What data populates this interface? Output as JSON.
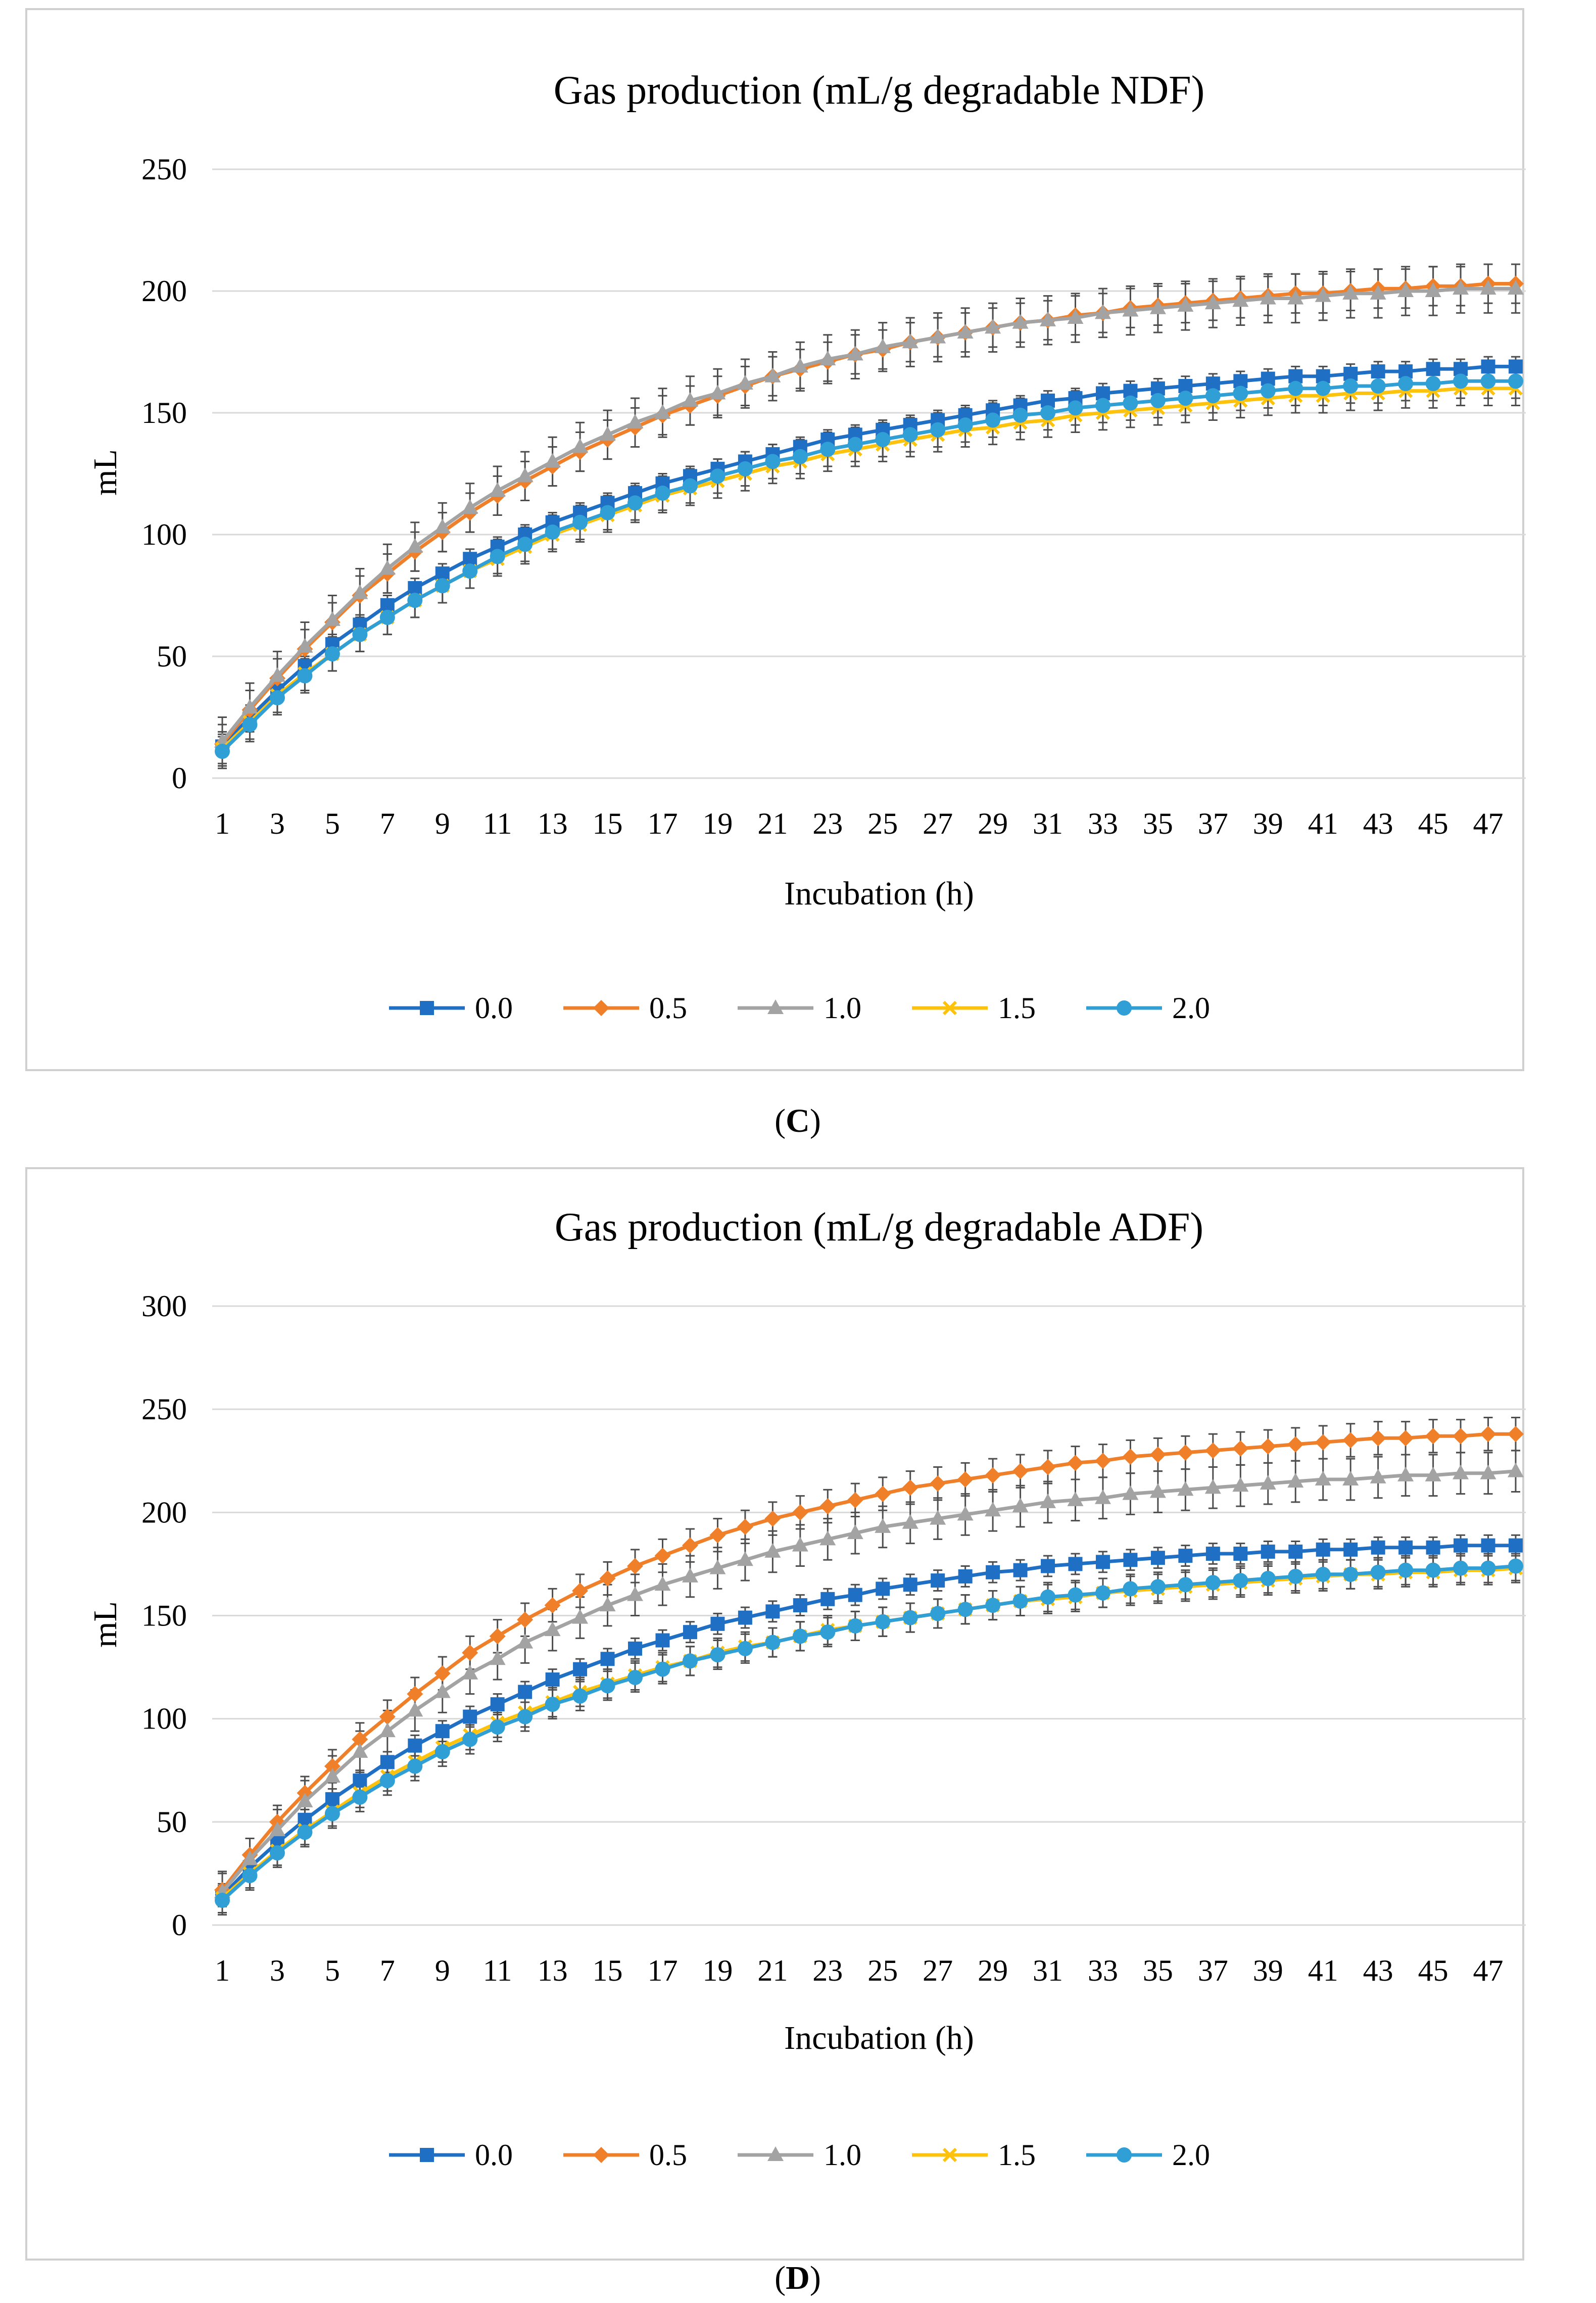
{
  "series_styles": [
    {
      "name": "0.0",
      "color": "#1f6fc4",
      "marker": "square"
    },
    {
      "name": "0.5",
      "color": "#f07f2a",
      "marker": "diamond"
    },
    {
      "name": "1.0",
      "color": "#a3a3a3",
      "marker": "triangle"
    },
    {
      "name": "1.5",
      "color": "#fdc20c",
      "marker": "x"
    },
    {
      "name": "2.0",
      "color": "#2f9fd6",
      "marker": "circle"
    }
  ],
  "error_bar_color": "#4d4d4d",
  "chart_data": [
    {
      "type": "line",
      "panel_label": "C",
      "title": "Gas production (mL/g degradable NDF)",
      "xlabel": "Incubation (h)",
      "ylabel": "mL",
      "ylim": [
        0,
        250
      ],
      "yticks": [
        0,
        50,
        100,
        150,
        200,
        250
      ],
      "x": [
        1,
        2,
        3,
        4,
        5,
        6,
        7,
        8,
        9,
        10,
        11,
        12,
        13,
        14,
        15,
        16,
        17,
        18,
        19,
        20,
        21,
        22,
        23,
        24,
        25,
        26,
        27,
        28,
        29,
        30,
        31,
        32,
        33,
        34,
        35,
        36,
        37,
        38,
        39,
        40,
        41,
        42,
        43,
        44,
        45,
        46,
        47,
        48
      ],
      "xtick_labels": [
        "1",
        "3",
        "5",
        "7",
        "9",
        "11",
        "13",
        "15",
        "17",
        "19",
        "21",
        "23",
        "25",
        "27",
        "29",
        "31",
        "33",
        "35",
        "37",
        "39",
        "41",
        "43",
        "45",
        "47"
      ],
      "legend_position": "bottom",
      "gridlines": true,
      "series": [
        {
          "name": "0.0",
          "values": [
            13,
            25,
            36,
            46,
            55,
            63,
            71,
            78,
            84,
            90,
            95,
            100,
            105,
            109,
            113,
            117,
            121,
            124,
            127,
            130,
            133,
            136,
            139,
            141,
            143,
            145,
            147,
            149,
            151,
            153,
            155,
            156,
            158,
            159,
            160,
            161,
            162,
            163,
            164,
            165,
            165,
            166,
            167,
            167,
            168,
            168,
            169,
            169
          ],
          "error": 4
        },
        {
          "name": "0.5",
          "values": [
            14,
            28,
            41,
            53,
            64,
            75,
            84,
            93,
            101,
            109,
            116,
            122,
            128,
            134,
            139,
            144,
            149,
            153,
            157,
            161,
            165,
            168,
            171,
            174,
            176,
            179,
            181,
            183,
            185,
            187,
            188,
            190,
            191,
            193,
            194,
            195,
            196,
            197,
            198,
            199,
            199,
            200,
            201,
            201,
            202,
            202,
            203,
            203
          ],
          "error": 8
        },
        {
          "name": "1.0",
          "values": [
            15,
            29,
            42,
            54,
            65,
            76,
            86,
            95,
            103,
            111,
            118,
            124,
            130,
            136,
            141,
            146,
            150,
            155,
            158,
            162,
            165,
            169,
            172,
            174,
            177,
            179,
            181,
            183,
            185,
            187,
            188,
            189,
            191,
            192,
            193,
            194,
            195,
            196,
            197,
            197,
            198,
            199,
            199,
            200,
            200,
            201,
            201,
            201
          ],
          "error": 10
        },
        {
          "name": "1.5",
          "values": [
            12,
            23,
            34,
            43,
            51,
            59,
            66,
            73,
            79,
            85,
            90,
            95,
            100,
            104,
            108,
            112,
            116,
            119,
            122,
            125,
            128,
            130,
            133,
            135,
            137,
            139,
            141,
            143,
            144,
            146,
            147,
            149,
            150,
            151,
            152,
            153,
            154,
            155,
            156,
            157,
            157,
            158,
            158,
            159,
            159,
            160,
            160,
            160
          ],
          "error": 7
        },
        {
          "name": "2.0",
          "values": [
            11,
            22,
            33,
            42,
            51,
            59,
            66,
            73,
            79,
            85,
            91,
            96,
            101,
            105,
            109,
            113,
            117,
            120,
            124,
            127,
            130,
            132,
            135,
            137,
            139,
            141,
            143,
            145,
            147,
            149,
            150,
            152,
            153,
            154,
            155,
            156,
            157,
            158,
            159,
            160,
            160,
            161,
            161,
            162,
            162,
            163,
            163,
            163
          ],
          "error": 7
        }
      ]
    },
    {
      "type": "line",
      "panel_label": "D",
      "title": "Gas production (mL/g degradable ADF)",
      "xlabel": "Incubation (h)",
      "ylabel": "mL",
      "ylim": [
        0,
        300
      ],
      "yticks": [
        0,
        50,
        100,
        150,
        200,
        250,
        300
      ],
      "x": [
        1,
        2,
        3,
        4,
        5,
        6,
        7,
        8,
        9,
        10,
        11,
        12,
        13,
        14,
        15,
        16,
        17,
        18,
        19,
        20,
        21,
        22,
        23,
        24,
        25,
        26,
        27,
        28,
        29,
        30,
        31,
        32,
        33,
        34,
        35,
        36,
        37,
        38,
        39,
        40,
        41,
        42,
        43,
        44,
        45,
        46,
        47,
        48
      ],
      "xtick_labels": [
        "1",
        "3",
        "5",
        "7",
        "9",
        "11",
        "13",
        "15",
        "17",
        "19",
        "21",
        "23",
        "25",
        "27",
        "29",
        "31",
        "33",
        "35",
        "37",
        "39",
        "41",
        "43",
        "45",
        "47"
      ],
      "legend_position": "bottom",
      "gridlines": true,
      "series": [
        {
          "name": "0.0",
          "values": [
            14,
            28,
            40,
            51,
            61,
            70,
            79,
            87,
            94,
            101,
            107,
            113,
            119,
            124,
            129,
            134,
            138,
            142,
            146,
            149,
            152,
            155,
            158,
            160,
            163,
            165,
            167,
            169,
            171,
            172,
            174,
            175,
            176,
            177,
            178,
            179,
            180,
            180,
            181,
            181,
            182,
            182,
            183,
            183,
            183,
            184,
            184,
            184
          ],
          "error": 5
        },
        {
          "name": "0.5",
          "values": [
            17,
            34,
            50,
            64,
            77,
            90,
            101,
            112,
            122,
            132,
            140,
            148,
            155,
            162,
            168,
            174,
            179,
            184,
            189,
            193,
            197,
            200,
            203,
            206,
            209,
            212,
            214,
            216,
            218,
            220,
            222,
            224,
            225,
            227,
            228,
            229,
            230,
            231,
            232,
            233,
            234,
            235,
            236,
            236,
            237,
            237,
            238,
            238
          ],
          "error": 8
        },
        {
          "name": "1.0",
          "values": [
            16,
            32,
            46,
            60,
            72,
            84,
            94,
            104,
            113,
            122,
            129,
            137,
            143,
            149,
            155,
            160,
            165,
            169,
            173,
            177,
            181,
            184,
            187,
            190,
            193,
            195,
            197,
            199,
            201,
            203,
            205,
            206,
            207,
            209,
            210,
            211,
            212,
            213,
            214,
            215,
            216,
            216,
            217,
            218,
            218,
            219,
            219,
            220
          ],
          "error": 10
        },
        {
          "name": "1.5",
          "values": [
            13,
            25,
            36,
            46,
            55,
            64,
            72,
            79,
            86,
            92,
            98,
            103,
            108,
            113,
            117,
            121,
            125,
            128,
            132,
            135,
            137,
            140,
            143,
            145,
            147,
            149,
            151,
            153,
            155,
            157,
            158,
            159,
            161,
            162,
            163,
            164,
            165,
            166,
            167,
            168,
            169,
            170,
            170,
            171,
            171,
            172,
            172,
            173
          ],
          "error": 7
        },
        {
          "name": "2.0",
          "values": [
            12,
            24,
            35,
            45,
            54,
            62,
            70,
            77,
            84,
            90,
            96,
            101,
            107,
            111,
            116,
            120,
            124,
            128,
            131,
            134,
            137,
            140,
            142,
            145,
            147,
            149,
            151,
            153,
            155,
            157,
            159,
            160,
            161,
            163,
            164,
            165,
            166,
            167,
            168,
            169,
            170,
            170,
            171,
            172,
            172,
            173,
            173,
            174
          ],
          "error": 7
        }
      ]
    }
  ]
}
